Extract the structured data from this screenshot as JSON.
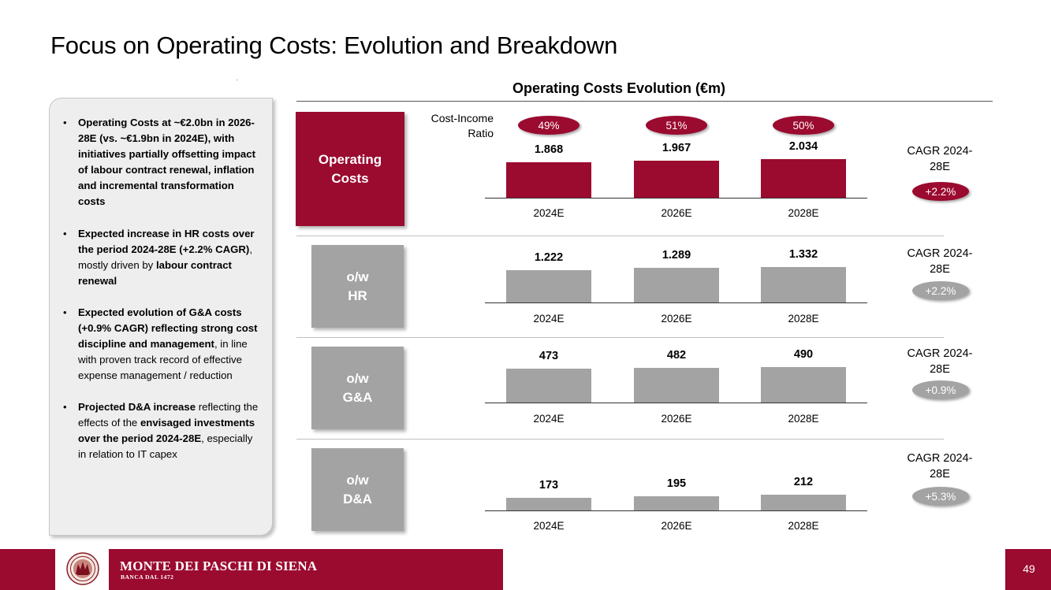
{
  "page": {
    "title": "Focus on Operating Costs: Evolution and Breakdown",
    "number": "49"
  },
  "bullets": [
    {
      "segments": [
        {
          "text": "Operating Costs at ~€2.0bn in 2026-28E (vs. ~€1.9bn in 2024E), with initiatives partially offsetting impact of labour contract renewal, inflation and incremental transformation costs",
          "bold": true
        }
      ]
    },
    {
      "segments": [
        {
          "text": "Expected increase in HR costs over the period 2024-28E (+2.2% CAGR)",
          "bold": true
        },
        {
          "text": ", mostly driven by ",
          "bold": false
        },
        {
          "text": "labour contract renewal",
          "bold": true
        }
      ]
    },
    {
      "segments": [
        {
          "text": "Expected evolution of G&A costs (+0.9% CAGR) reflecting strong cost discipline and management",
          "bold": true
        },
        {
          "text": ", in line with proven track record of effective expense management / reduction",
          "bold": false
        }
      ]
    },
    {
      "segments": [
        {
          "text": "Projected D&A increase",
          "bold": true
        },
        {
          "text": " reflecting the effects of the ",
          "bold": false
        },
        {
          "text": "envisaged investments over the period 2024-28E",
          "bold": true
        },
        {
          "text": ", especially in relation to IT capex",
          "bold": false
        }
      ]
    }
  ],
  "chart": {
    "cost_income_label": "Cost-Income Ratio",
    "cost_income": [
      "49%",
      "51%",
      "50%"
    ],
    "cagr_label": "CAGR 2024-28E"
  },
  "chart_data": {
    "type": "bar",
    "title": "Operating Costs Evolution (€m)",
    "categories": [
      "2024E",
      "2026E",
      "2028E"
    ],
    "series": [
      {
        "name": "Operating Costs",
        "values": [
          1868,
          1967,
          2034
        ],
        "labels": [
          "1.868",
          "1.967",
          "2.034"
        ],
        "cagr": "+2.2%"
      },
      {
        "name": "o/w HR",
        "values": [
          1222,
          1289,
          1332
        ],
        "labels": [
          "1.222",
          "1.289",
          "1.332"
        ],
        "cagr": "+2.2%"
      },
      {
        "name": "o/w G&A",
        "values": [
          473,
          482,
          490
        ],
        "labels": [
          "473",
          "482",
          "490"
        ],
        "cagr": "+0.9%"
      },
      {
        "name": "o/w D&A",
        "values": [
          173,
          195,
          212
        ],
        "labels": [
          "173",
          "195",
          "212"
        ],
        "cagr": "+5.3%"
      }
    ],
    "xlabel": "",
    "ylabel": ""
  },
  "footer": {
    "brand": "MONTE DEI PASCHI DI SIENA",
    "tagline": "BANCA DAL 1472"
  },
  "colors": {
    "brand": "#9b0a2f",
    "gray": "#a3a3a3",
    "panel": "#eeeeee"
  }
}
